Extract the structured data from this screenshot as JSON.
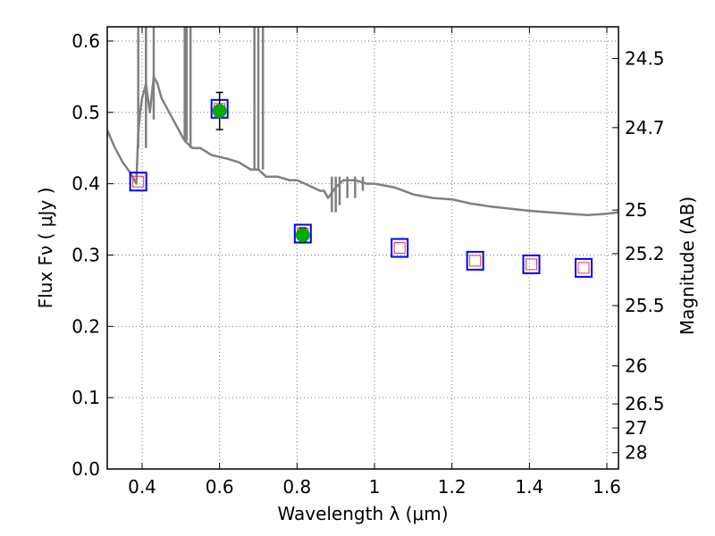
{
  "chart_data": {
    "type": "scatter",
    "title": "",
    "xlabel": "Wavelength  λ (μm)",
    "ylabel": "Flux  Fν  ( μJy )",
    "ylabel_right": "Magnitude (AB)",
    "xlim": [
      0.31,
      1.63
    ],
    "ylim": [
      0.0,
      0.62
    ],
    "grid": true,
    "x_ticks": [
      0.4,
      0.6,
      0.8,
      1.0,
      1.2,
      1.4,
      1.6
    ],
    "x_tick_labels": [
      "0.4",
      "0.6",
      "0.8",
      "1",
      "1.2",
      "1.4",
      "1.6"
    ],
    "y_ticks": [
      0.0,
      0.1,
      0.2,
      0.3,
      0.4,
      0.5,
      0.6
    ],
    "y_tick_labels": [
      "0.0",
      "0.1",
      "0.2",
      "0.3",
      "0.4",
      "0.5",
      "0.6"
    ],
    "right_ticks": [
      {
        "label": "24.5",
        "value": 24.5
      },
      {
        "label": "24.7",
        "value": 24.7
      },
      {
        "label": "25",
        "value": 25
      },
      {
        "label": "25.2",
        "value": 25.2
      },
      {
        "label": "25.5",
        "value": 25.5
      },
      {
        "label": "26",
        "value": 26
      },
      {
        "label": "26.5",
        "value": 26.5
      },
      {
        "label": "27",
        "value": 27
      },
      {
        "label": "28",
        "value": 28
      }
    ],
    "colors": {
      "model": "#808080",
      "model_flux_marker": "#ff3333",
      "observed_box": "#0000ff",
      "detection": "#00aa00",
      "errorbar": "#000000",
      "grid": "#777777"
    },
    "series": [
      {
        "name": "model spectrum",
        "kind": "line",
        "x": [
          0.31,
          0.33,
          0.35,
          0.37,
          0.385,
          0.39,
          0.395,
          0.4,
          0.41,
          0.42,
          0.43,
          0.44,
          0.45,
          0.46,
          0.47,
          0.48,
          0.49,
          0.5,
          0.51,
          0.52,
          0.53,
          0.55,
          0.58,
          0.62,
          0.65,
          0.68,
          0.7,
          0.72,
          0.75,
          0.78,
          0.8,
          0.82,
          0.84,
          0.86,
          0.87,
          0.88,
          0.9,
          0.92,
          0.95,
          0.98,
          1.0,
          1.05,
          1.1,
          1.15,
          1.2,
          1.25,
          1.3,
          1.35,
          1.4,
          1.45,
          1.5,
          1.55,
          1.6,
          1.63
        ],
        "y": [
          0.475,
          0.45,
          0.43,
          0.415,
          0.4,
          0.47,
          0.5,
          0.52,
          0.54,
          0.5,
          0.55,
          0.54,
          0.52,
          0.51,
          0.5,
          0.49,
          0.48,
          0.47,
          0.46,
          0.455,
          0.45,
          0.45,
          0.44,
          0.435,
          0.43,
          0.42,
          0.42,
          0.41,
          0.41,
          0.405,
          0.405,
          0.4,
          0.395,
          0.39,
          0.39,
          0.38,
          0.395,
          0.405,
          0.405,
          0.4,
          0.4,
          0.395,
          0.385,
          0.38,
          0.378,
          0.372,
          0.368,
          0.365,
          0.362,
          0.36,
          0.358,
          0.356,
          0.358,
          0.36
        ]
      },
      {
        "name": "model spikes",
        "kind": "spikes",
        "x": [
          0.39,
          0.41,
          0.43,
          0.51,
          0.515,
          0.525,
          0.69,
          0.7,
          0.712,
          0.89,
          0.9,
          0.91,
          0.93,
          0.95,
          0.97
        ],
        "y_low": [
          0.45,
          0.45,
          0.49,
          0.46,
          0.46,
          0.45,
          0.42,
          0.42,
          0.42,
          0.36,
          0.36,
          0.37,
          0.38,
          0.38,
          0.39
        ],
        "y_high": [
          0.62,
          0.62,
          0.62,
          0.62,
          0.62,
          0.62,
          0.62,
          0.62,
          0.62,
          0.41,
          0.41,
          0.41,
          0.41,
          0.41,
          0.41
        ]
      },
      {
        "name": "observed bands",
        "kind": "open-square",
        "x": [
          0.39,
          0.6,
          0.815,
          1.065,
          1.26,
          1.405,
          1.54
        ],
        "y": [
          0.403,
          0.505,
          0.33,
          0.31,
          0.292,
          0.287,
          0.282
        ]
      },
      {
        "name": "model band flux",
        "kind": "small-square",
        "x": [
          0.39,
          0.6,
          0.815,
          1.065,
          1.26,
          1.405,
          1.54
        ],
        "y": [
          0.403,
          0.505,
          0.33,
          0.31,
          0.292,
          0.287,
          0.282
        ]
      },
      {
        "name": "detections",
        "kind": "filled-circle",
        "x": [
          0.6,
          0.815
        ],
        "y": [
          0.502,
          0.328
        ],
        "yerr": [
          0.026,
          0.01
        ]
      }
    ]
  }
}
